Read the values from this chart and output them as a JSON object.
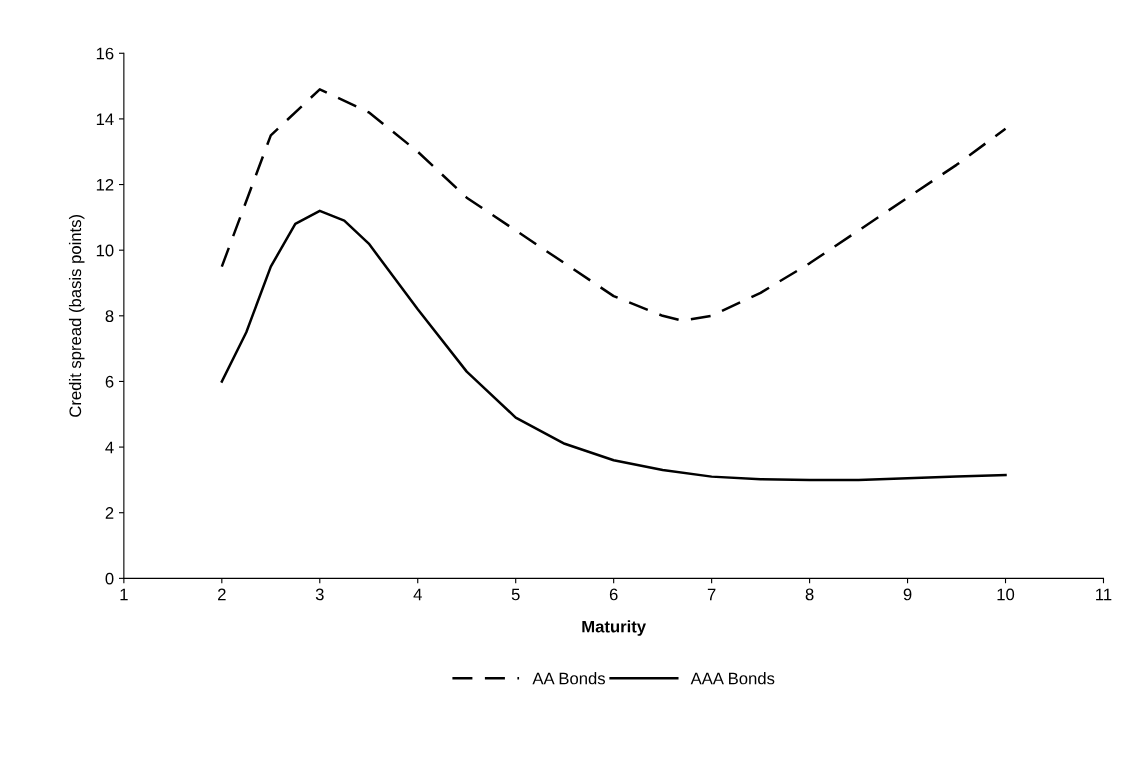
{
  "chart_data": {
    "type": "line",
    "xlabel": "Maturity",
    "ylabel": "Credit spread (basis points)",
    "xlim": [
      1,
      11
    ],
    "xticks": [
      1,
      2,
      3,
      4,
      5,
      6,
      7,
      8,
      9,
      10,
      11
    ],
    "ylim": [
      0,
      16
    ],
    "yticks": [
      0,
      2,
      4,
      6,
      8,
      10,
      12,
      14,
      16
    ],
    "grid": false,
    "legend": "bottom",
    "marker": "none",
    "series": [
      {
        "name": "AA Bonds",
        "color": "#000000",
        "line_style": "dashed",
        "x": [
          2,
          2.5,
          3,
          3.5,
          4,
          4.5,
          5,
          5.5,
          6,
          6.5,
          6.7,
          7,
          7.5,
          8,
          8.5,
          9,
          9.5,
          10
        ],
        "values": [
          9.5,
          13.5,
          14.9,
          14.2,
          13,
          11.6,
          10.6,
          9.6,
          8.6,
          8.0,
          7.85,
          8.0,
          8.7,
          9.6,
          10.6,
          11.6,
          12.6,
          13.7
        ]
      },
      {
        "name": "AAA Bonds",
        "color": "#000000",
        "line_style": "solid",
        "x": [
          2,
          2.25,
          2.5,
          2.75,
          3,
          3.25,
          3.5,
          4,
          4.5,
          5,
          5.5,
          6,
          6.5,
          7,
          7.5,
          8,
          8.5,
          9,
          9.5,
          10
        ],
        "values": [
          6.0,
          7.5,
          9.5,
          10.8,
          11.2,
          10.9,
          10.2,
          8.2,
          6.3,
          4.9,
          4.1,
          3.6,
          3.3,
          3.1,
          3.02,
          3.0,
          3.0,
          3.05,
          3.1,
          3.15
        ]
      }
    ]
  }
}
